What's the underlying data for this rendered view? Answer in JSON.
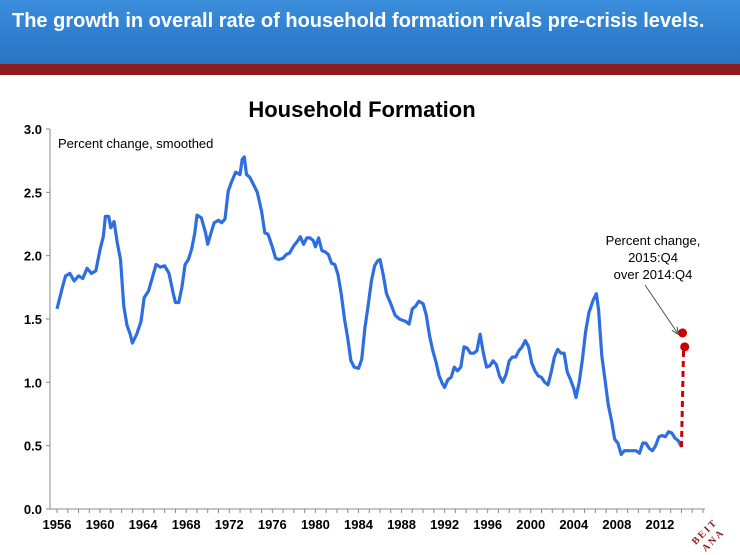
{
  "slide": {
    "headline": "The growth in overall rate of household formation rivals pre-crisis levels.",
    "accent_color": "#2f7fd0",
    "stripe_color": "#8c1c1e"
  },
  "chart_data": {
    "type": "line",
    "title": "Household Formation",
    "subtitle": "Percent change, smoothed",
    "xlabel": "",
    "ylabel": "",
    "xlim": [
      1956,
      2016
    ],
    "ylim": [
      0,
      3.0
    ],
    "yticks": [
      "0.0",
      "0.5",
      "1.0",
      "1.5",
      "2.0",
      "2.5",
      "3.0"
    ],
    "xticks": [
      "1956",
      "1960",
      "1964",
      "1968",
      "1972",
      "1976",
      "1980",
      "1984",
      "1988",
      "1992",
      "1996",
      "2000",
      "2004",
      "2008",
      "2012"
    ],
    "grid": false,
    "line_color": "#2f6ee0",
    "series": [
      {
        "points": [
          [
            1956.0,
            1.58
          ],
          [
            1956.5,
            1.75
          ],
          [
            1956.8,
            1.84
          ],
          [
            1957.2,
            1.86
          ],
          [
            1957.6,
            1.8
          ],
          [
            1958.0,
            1.84
          ],
          [
            1958.4,
            1.82
          ],
          [
            1958.8,
            1.9
          ],
          [
            1959.2,
            1.86
          ],
          [
            1959.6,
            1.88
          ],
          [
            1960.0,
            2.05
          ],
          [
            1960.3,
            2.15
          ],
          [
            1960.5,
            2.31
          ],
          [
            1960.8,
            2.31
          ],
          [
            1961.0,
            2.22
          ],
          [
            1961.3,
            2.27
          ],
          [
            1961.6,
            2.1
          ],
          [
            1961.9,
            1.97
          ],
          [
            1962.2,
            1.6
          ],
          [
            1962.5,
            1.45
          ],
          [
            1962.8,
            1.38
          ],
          [
            1963.0,
            1.31
          ],
          [
            1963.4,
            1.38
          ],
          [
            1963.8,
            1.48
          ],
          [
            1964.1,
            1.67
          ],
          [
            1964.5,
            1.72
          ],
          [
            1964.9,
            1.84
          ],
          [
            1965.2,
            1.93
          ],
          [
            1965.6,
            1.91
          ],
          [
            1966.0,
            1.92
          ],
          [
            1966.4,
            1.86
          ],
          [
            1966.8,
            1.7
          ],
          [
            1967.0,
            1.63
          ],
          [
            1967.3,
            1.63
          ],
          [
            1967.6,
            1.75
          ],
          [
            1967.9,
            1.93
          ],
          [
            1968.2,
            1.97
          ],
          [
            1968.5,
            2.05
          ],
          [
            1968.8,
            2.18
          ],
          [
            1969.0,
            2.32
          ],
          [
            1969.4,
            2.3
          ],
          [
            1969.8,
            2.18
          ],
          [
            1970.0,
            2.09
          ],
          [
            1970.3,
            2.18
          ],
          [
            1970.6,
            2.26
          ],
          [
            1971.0,
            2.28
          ],
          [
            1971.3,
            2.26
          ],
          [
            1971.6,
            2.29
          ],
          [
            1971.9,
            2.51
          ],
          [
            1972.2,
            2.58
          ],
          [
            1972.6,
            2.66
          ],
          [
            1973.0,
            2.64
          ],
          [
            1973.2,
            2.76
          ],
          [
            1973.4,
            2.78
          ],
          [
            1973.6,
            2.64
          ],
          [
            1973.9,
            2.62
          ],
          [
            1974.2,
            2.57
          ],
          [
            1974.6,
            2.5
          ],
          [
            1975.0,
            2.35
          ],
          [
            1975.3,
            2.18
          ],
          [
            1975.6,
            2.17
          ],
          [
            1976.0,
            2.07
          ],
          [
            1976.3,
            1.98
          ],
          [
            1976.6,
            1.97
          ],
          [
            1977.0,
            1.98
          ],
          [
            1977.3,
            2.01
          ],
          [
            1977.6,
            2.02
          ],
          [
            1978.0,
            2.08
          ],
          [
            1978.3,
            2.11
          ],
          [
            1978.6,
            2.15
          ],
          [
            1978.9,
            2.09
          ],
          [
            1979.2,
            2.14
          ],
          [
            1979.5,
            2.14
          ],
          [
            1979.8,
            2.12
          ],
          [
            1980.0,
            2.07
          ],
          [
            1980.3,
            2.14
          ],
          [
            1980.6,
            2.04
          ],
          [
            1980.9,
            2.03
          ],
          [
            1981.2,
            2.01
          ],
          [
            1981.5,
            1.94
          ],
          [
            1981.8,
            1.93
          ],
          [
            1982.1,
            1.85
          ],
          [
            1982.4,
            1.7
          ],
          [
            1982.7,
            1.5
          ],
          [
            1983.0,
            1.35
          ],
          [
            1983.3,
            1.17
          ],
          [
            1983.6,
            1.12
          ],
          [
            1984.0,
            1.11
          ],
          [
            1984.3,
            1.18
          ],
          [
            1984.6,
            1.43
          ],
          [
            1984.9,
            1.61
          ],
          [
            1985.2,
            1.8
          ],
          [
            1985.5,
            1.92
          ],
          [
            1985.8,
            1.96
          ],
          [
            1986.0,
            1.97
          ],
          [
            1986.3,
            1.85
          ],
          [
            1986.6,
            1.7
          ],
          [
            1987.0,
            1.62
          ],
          [
            1987.4,
            1.53
          ],
          [
            1987.8,
            1.5
          ],
          [
            1988.1,
            1.49
          ],
          [
            1988.4,
            1.48
          ],
          [
            1988.7,
            1.46
          ],
          [
            1989.0,
            1.58
          ],
          [
            1989.3,
            1.6
          ],
          [
            1989.6,
            1.64
          ],
          [
            1990.0,
            1.62
          ],
          [
            1990.3,
            1.53
          ],
          [
            1990.6,
            1.37
          ],
          [
            1990.9,
            1.25
          ],
          [
            1991.2,
            1.16
          ],
          [
            1991.5,
            1.05
          ],
          [
            1991.8,
            0.99
          ],
          [
            1992.0,
            0.96
          ],
          [
            1992.3,
            1.02
          ],
          [
            1992.6,
            1.04
          ],
          [
            1992.9,
            1.12
          ],
          [
            1993.2,
            1.09
          ],
          [
            1993.5,
            1.12
          ],
          [
            1993.8,
            1.28
          ],
          [
            1994.1,
            1.27
          ],
          [
            1994.4,
            1.23
          ],
          [
            1994.7,
            1.23
          ],
          [
            1995.0,
            1.25
          ],
          [
            1995.3,
            1.38
          ],
          [
            1995.6,
            1.23
          ],
          [
            1995.9,
            1.12
          ],
          [
            1996.2,
            1.13
          ],
          [
            1996.5,
            1.17
          ],
          [
            1996.8,
            1.14
          ],
          [
            1997.1,
            1.05
          ],
          [
            1997.4,
            1.0
          ],
          [
            1997.7,
            1.06
          ],
          [
            1998.0,
            1.17
          ],
          [
            1998.3,
            1.2
          ],
          [
            1998.6,
            1.2
          ],
          [
            1998.9,
            1.25
          ],
          [
            1999.2,
            1.28
          ],
          [
            1999.5,
            1.33
          ],
          [
            1999.8,
            1.28
          ],
          [
            2000.1,
            1.15
          ],
          [
            2000.4,
            1.09
          ],
          [
            2000.7,
            1.05
          ],
          [
            2001.0,
            1.04
          ],
          [
            2001.3,
            1.0
          ],
          [
            2001.6,
            0.98
          ],
          [
            2001.9,
            1.08
          ],
          [
            2002.2,
            1.2
          ],
          [
            2002.5,
            1.26
          ],
          [
            2002.8,
            1.23
          ],
          [
            2003.1,
            1.23
          ],
          [
            2003.4,
            1.08
          ],
          [
            2003.7,
            1.02
          ],
          [
            2004.0,
            0.95
          ],
          [
            2004.2,
            0.88
          ],
          [
            2004.5,
            1.0
          ],
          [
            2004.8,
            1.18
          ],
          [
            2005.1,
            1.4
          ],
          [
            2005.4,
            1.55
          ],
          [
            2005.8,
            1.65
          ],
          [
            2006.1,
            1.7
          ],
          [
            2006.3,
            1.57
          ],
          [
            2006.6,
            1.21
          ],
          [
            2006.9,
            1.02
          ],
          [
            2007.2,
            0.82
          ],
          [
            2007.5,
            0.7
          ],
          [
            2007.8,
            0.55
          ],
          [
            2008.1,
            0.52
          ],
          [
            2008.4,
            0.43
          ],
          [
            2008.7,
            0.46
          ],
          [
            2009.0,
            0.46
          ],
          [
            2009.4,
            0.46
          ],
          [
            2009.8,
            0.46
          ],
          [
            2010.1,
            0.44
          ],
          [
            2010.4,
            0.52
          ],
          [
            2010.7,
            0.52
          ],
          [
            2011.0,
            0.48
          ],
          [
            2011.3,
            0.46
          ],
          [
            2011.6,
            0.5
          ],
          [
            2011.9,
            0.57
          ],
          [
            2012.2,
            0.58
          ],
          [
            2012.5,
            0.57
          ],
          [
            2012.8,
            0.61
          ],
          [
            2013.1,
            0.6
          ],
          [
            2013.4,
            0.56
          ],
          [
            2013.7,
            0.54
          ],
          [
            2014.0,
            0.49
          ]
        ]
      }
    ],
    "annotation": {
      "lines": [
        "Percent change,",
        "2015:Q4",
        "over 2014:Q4"
      ],
      "dash_from": [
        2014.0,
        0.49
      ],
      "dash_to": [
        2014.2,
        1.28
      ],
      "dash_color": "#cc0000",
      "points": [
        [
          2014.1,
          1.39
        ],
        [
          2014.3,
          1.28
        ]
      ],
      "point_color": "#cc0000",
      "arrow_target": [
        2014.1,
        1.33
      ]
    }
  },
  "logo": {
    "text": "BEIT ANA",
    "color": "#8c1c1e"
  }
}
